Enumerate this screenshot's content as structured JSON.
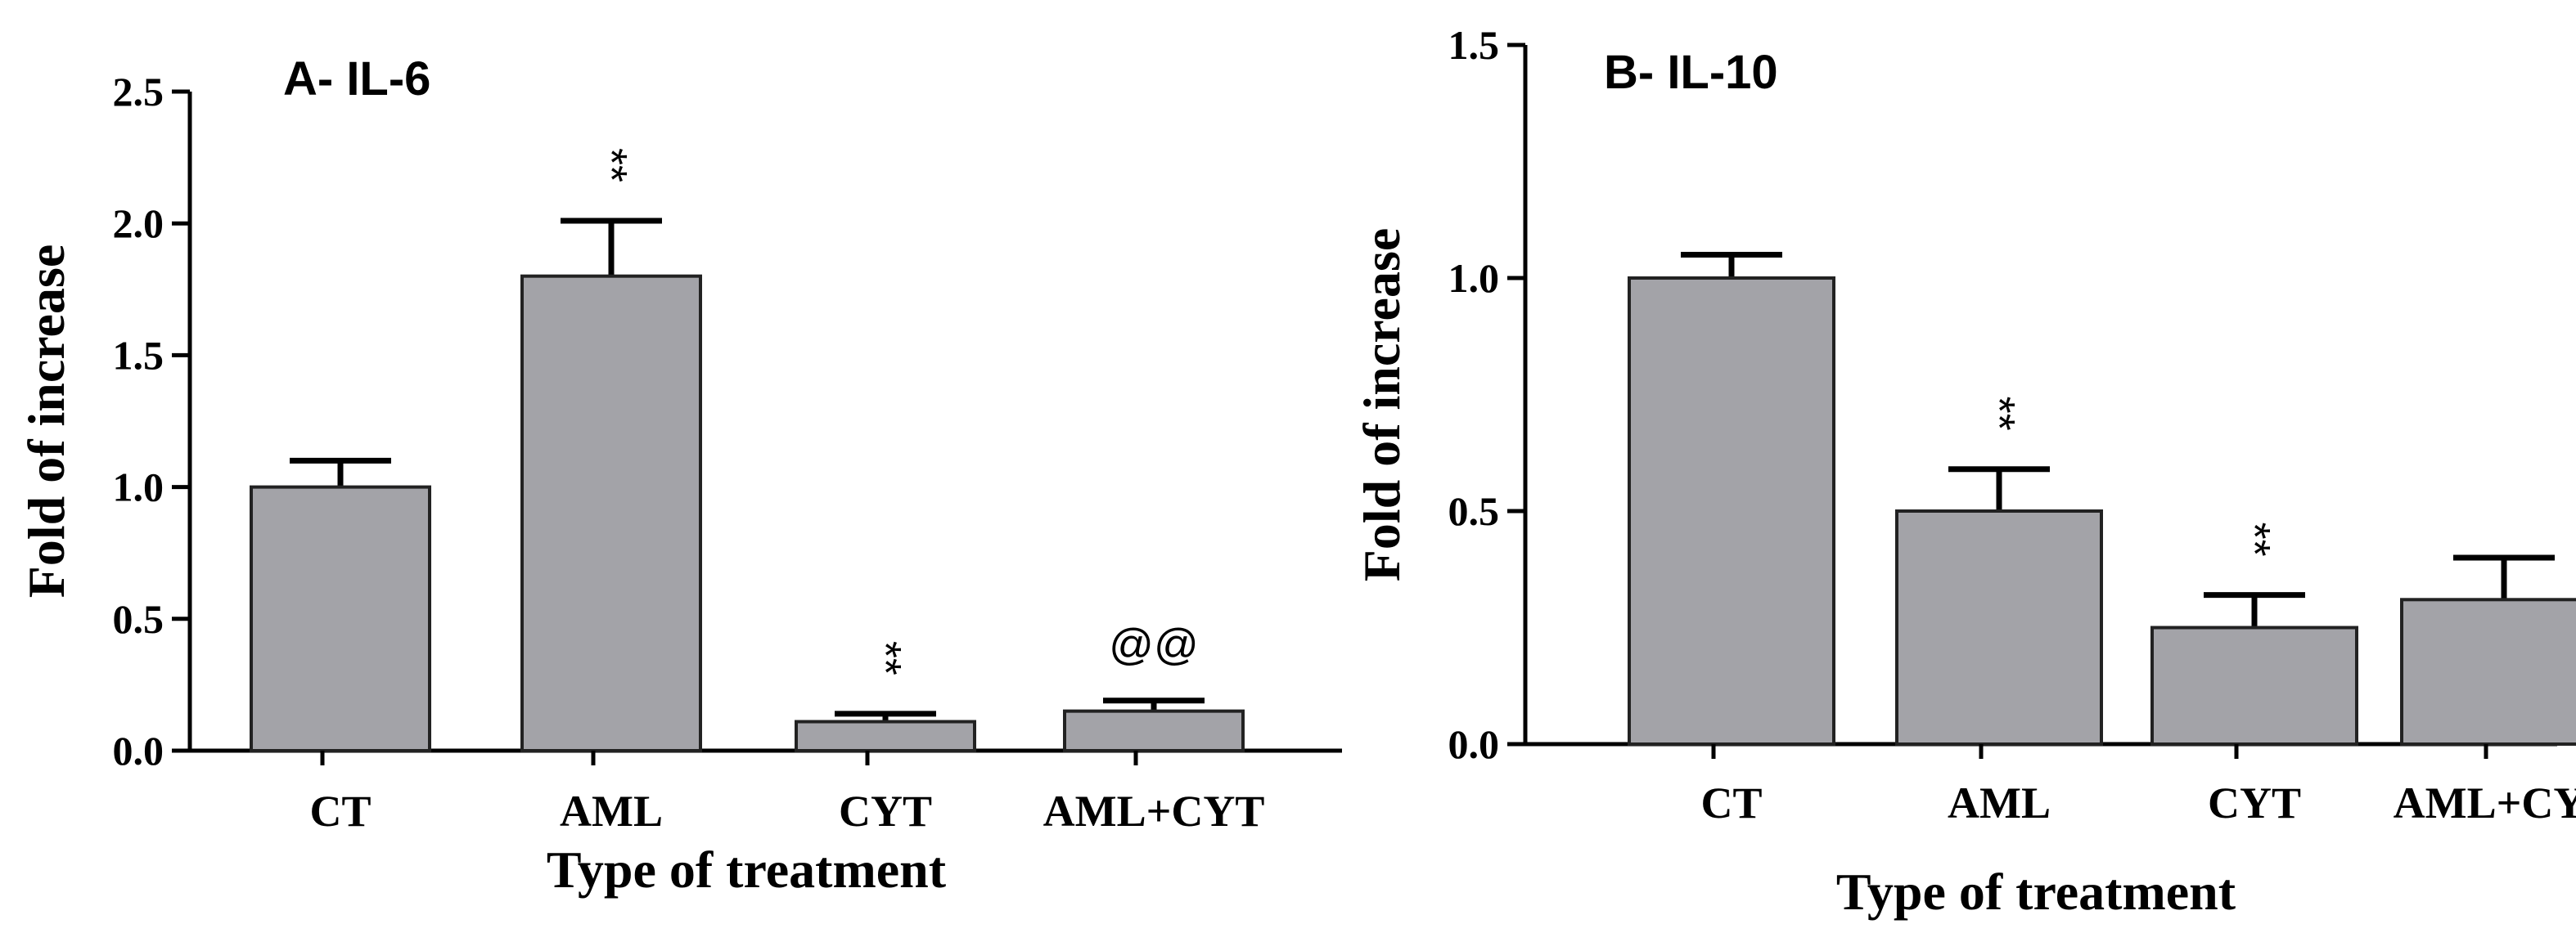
{
  "chart_data": [
    {
      "type": "bar",
      "title": "A- IL-6",
      "xlabel": "Type of treatment",
      "ylabel": "Fold of increase",
      "ylim": [
        0,
        2.5
      ],
      "yticks": [
        "0.0",
        "0.5",
        "1.0",
        "1.5",
        "2.0",
        "2.5"
      ],
      "categories": [
        "CT",
        "AML",
        "CYT",
        "AML+CYT"
      ],
      "values": [
        1.0,
        1.8,
        0.11,
        0.15
      ],
      "errors": [
        0.1,
        0.21,
        0.03,
        0.04
      ],
      "significance": [
        "",
        "**",
        "**",
        "@@"
      ],
      "grid": false,
      "bar_color": "#a3a3a8"
    },
    {
      "type": "bar",
      "title": "B- IL-10",
      "xlabel": "Type of treatment",
      "ylabel": "Fold of increase",
      "ylim": [
        0,
        1.5
      ],
      "yticks": [
        "0.0",
        "0.5",
        "1.0",
        "1.5"
      ],
      "categories": [
        "CT",
        "AML",
        "CYT",
        "AML+CYT"
      ],
      "values": [
        1.0,
        0.5,
        0.25,
        0.31
      ],
      "errors": [
        0.05,
        0.09,
        0.07,
        0.09
      ],
      "significance": [
        "",
        "**",
        "**",
        ""
      ],
      "grid": false,
      "bar_color": "#a3a3a8"
    }
  ]
}
